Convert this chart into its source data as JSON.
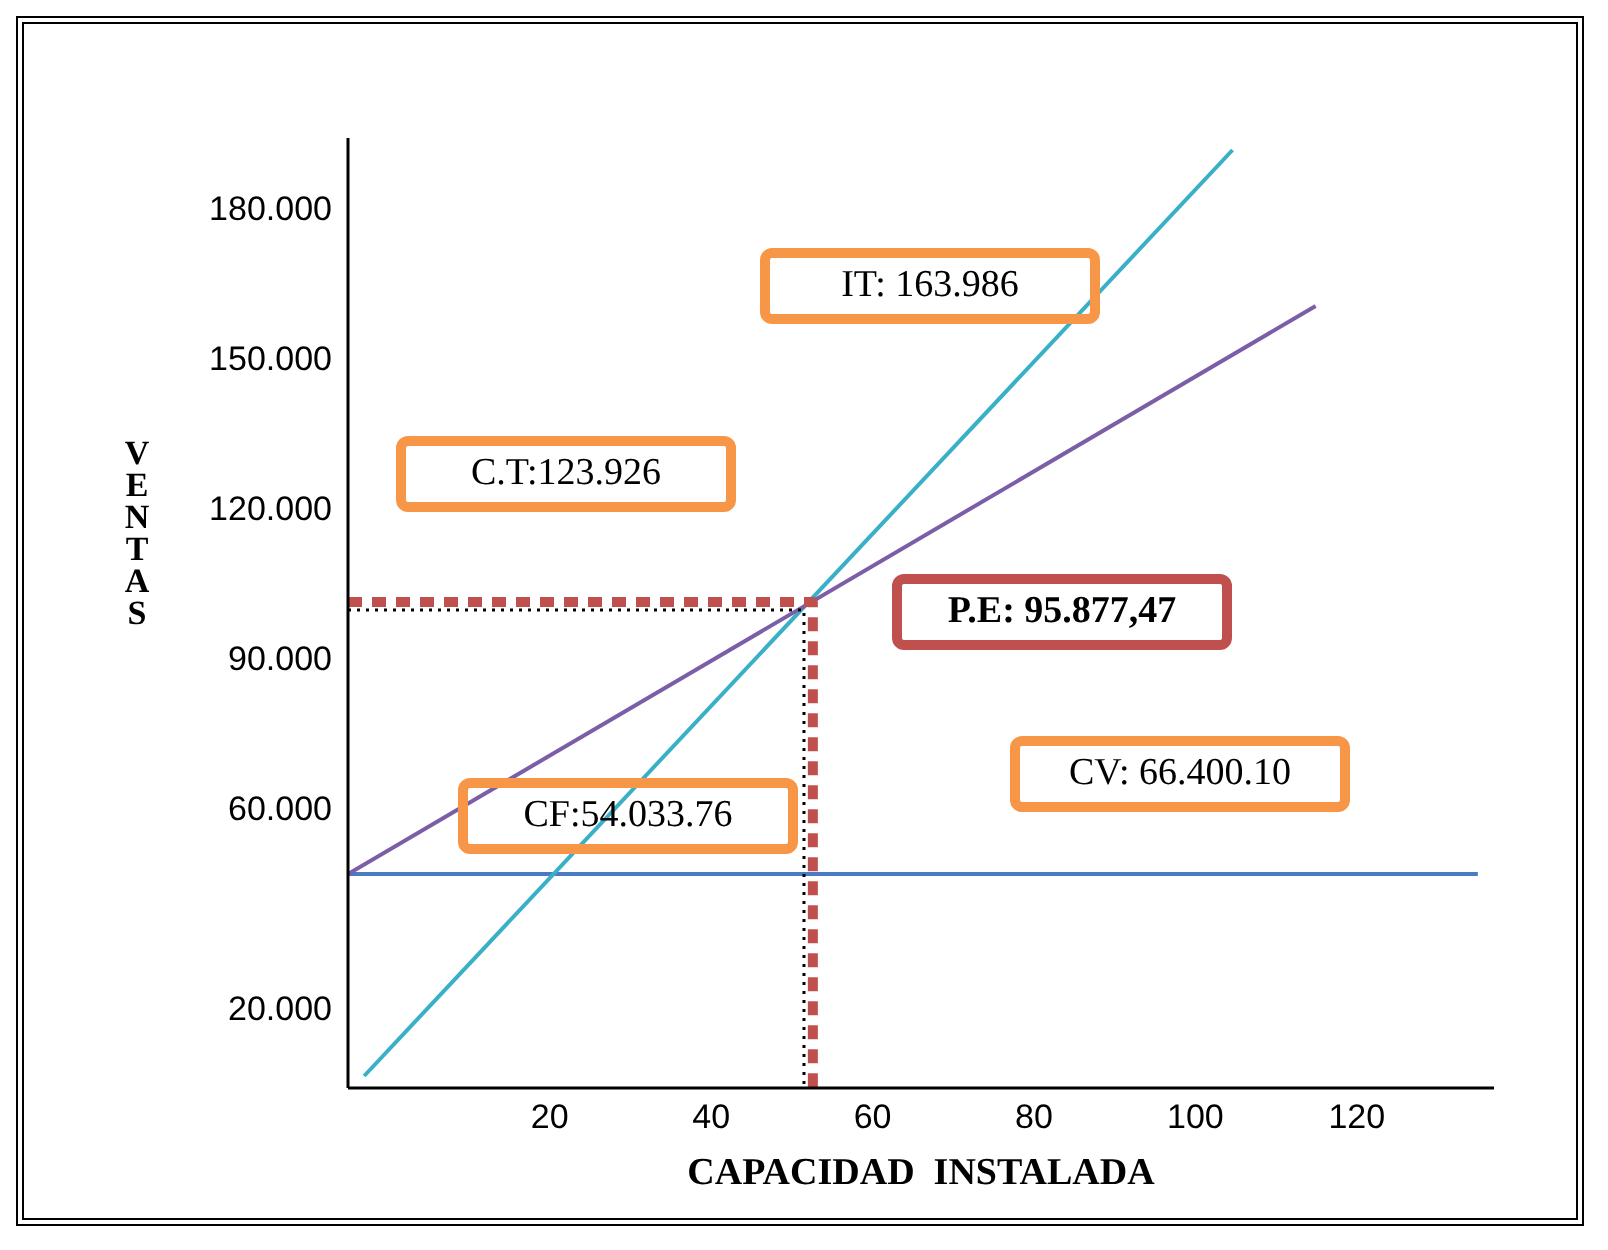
{
  "chart_data": {
    "type": "line",
    "xlabel": "CAPACIDAD  INSTALADA",
    "ylabel": "VENTAS",
    "xlim": [
      -5,
      137
    ],
    "xticks": [
      20,
      40,
      60,
      80,
      100,
      120
    ],
    "ylim": [
      4000,
      194000
    ],
    "yticks": [
      {
        "value": 20000,
        "label": "20.000"
      },
      {
        "value": 60000,
        "label": "60.000"
      },
      {
        "value": 90000,
        "label": "90.000"
      },
      {
        "value": 120000,
        "label": "120.000"
      },
      {
        "value": 150000,
        "label": "150.000"
      },
      {
        "value": 180000,
        "label": "180.000"
      }
    ],
    "grid": false,
    "marker": "none",
    "series": [
      {
        "color": "#4a7cc4",
        "line_style": "solid",
        "x": [
          -5,
          135
        ],
        "values": [
          46800,
          46800
        ]
      },
      {
        "color": "#3ab0c8",
        "line_style": "solid",
        "x": [
          -3,
          104.6
        ],
        "values": [
          6400,
          191600
        ]
      },
      {
        "color": "#7b5ea7",
        "line_style": "solid",
        "x": [
          -5,
          114.9
        ],
        "values": [
          46800,
          160400
        ]
      },
      {
        "color": "#000000",
        "line_style": "dotted",
        "x": [
          -5,
          51.5,
          51.5
        ],
        "values": [
          99600,
          99600,
          4000
        ]
      },
      {
        "color": "#c0504d",
        "line_style": "dashed",
        "x": [
          -5,
          52.6,
          52.6
        ],
        "values": [
          101200,
          101200,
          4000
        ]
      }
    ],
    "annotations": [
      "IT: 163.986",
      "C.T:123.926",
      "P.E: 95.877,47",
      "CF:54.033.76",
      "CV: 66.400.10"
    ]
  }
}
